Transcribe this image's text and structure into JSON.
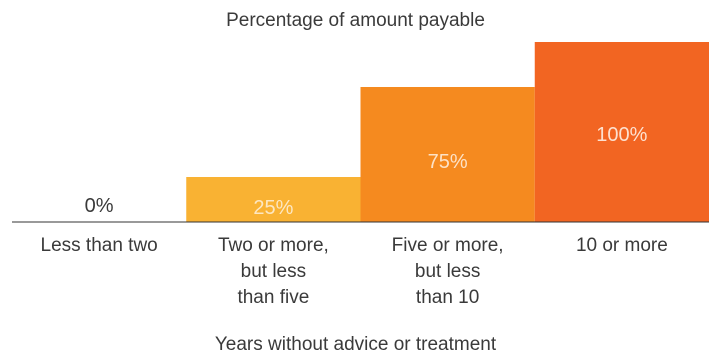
{
  "chart_data": {
    "type": "bar",
    "title": "Percentage of amount payable",
    "xlabel": "Years without advice or treatment",
    "ylabel": "",
    "categories": [
      "Less than two",
      "Two or more, but less than five",
      "Five or more, but less than 10",
      "10 or more"
    ],
    "category_lines": [
      [
        "Less than two"
      ],
      [
        "Two or more,",
        "but less",
        "than five"
      ],
      [
        "Five or more,",
        "but less",
        "than 10"
      ],
      [
        "10 or more"
      ]
    ],
    "values": [
      0,
      25,
      75,
      100
    ],
    "data_labels": [
      "0%",
      "25%",
      "75%",
      "100%"
    ],
    "ylim": [
      0,
      100
    ],
    "colors": [
      "#ffffff",
      "#f9b233",
      "#f58a1f",
      "#f26522"
    ],
    "label_colors": [
      "#3a3a3a",
      "#fde7c2",
      "#fde2c6",
      "#fde0cf"
    ],
    "grid": false,
    "legend": "none"
  }
}
